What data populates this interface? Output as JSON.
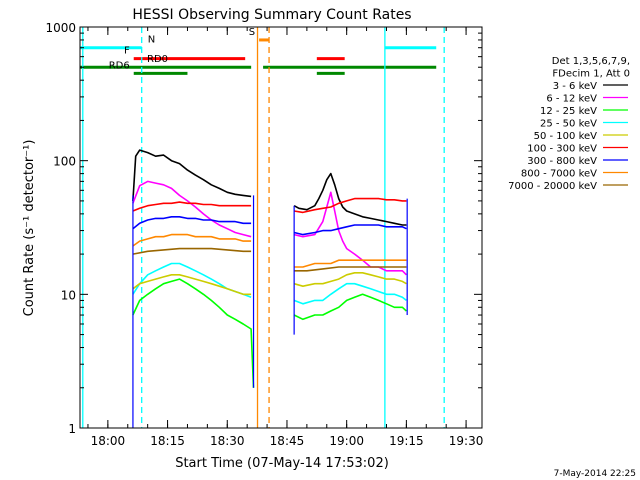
{
  "chart_data": {
    "type": "line",
    "title": "HESSI Observing Summary Count Rates",
    "xlabel": "Start Time (07-May-14 17:53:02)",
    "ylabel": "Count Rate (s⁻¹ detector⁻¹)",
    "x_unit": "minutes after 17:53:02",
    "xlim": [
      0,
      101
    ],
    "ylim": [
      1,
      1000
    ],
    "yscale": "log",
    "x_ticks": [
      {
        "value": 7,
        "label": "18:00"
      },
      {
        "value": 22,
        "label": "18:15"
      },
      {
        "value": 37,
        "label": "18:30"
      },
      {
        "value": 52,
        "label": "18:45"
      },
      {
        "value": 67,
        "label": "19:00"
      },
      {
        "value": 82,
        "label": "19:15"
      },
      {
        "value": 97,
        "label": "19:30"
      }
    ],
    "y_ticks": [
      {
        "value": 1,
        "label": "1"
      },
      {
        "value": 10,
        "label": "10"
      },
      {
        "value": 100,
        "label": "100"
      },
      {
        "value": 1000,
        "label": "1000"
      }
    ],
    "legend": {
      "position": "right",
      "header": [
        "Det 1,3,5,6,7,9,",
        "FDecim 1, Att 0"
      ],
      "entries": [
        {
          "label": "3 - 6 keV",
          "color": "#000000"
        },
        {
          "label": "6 - 12 keV",
          "color": "#ff00ff"
        },
        {
          "label": "12 - 25 keV",
          "color": "#00ff00"
        },
        {
          "label": "25 - 50 keV",
          "color": "#00ffff"
        },
        {
          "label": "50 - 100 keV",
          "color": "#cccc00"
        },
        {
          "label": "100 - 300 keV",
          "color": "#ff0000"
        },
        {
          "label": "300 - 800 keV",
          "color": "#0000ff"
        },
        {
          "label": "800 - 7000 keV",
          "color": "#ff8800"
        },
        {
          "label": "7000 - 20000 keV",
          "color": "#996600"
        }
      ]
    },
    "series": [
      {
        "name": "3 - 6 keV",
        "color": "#000000",
        "segments": [
          {
            "x": [
              13.3,
              14,
              15,
              17,
              19,
              21,
              23,
              25,
              27,
              29,
              31,
              33,
              35,
              37,
              39,
              41,
              43
            ],
            "y": [
              50,
              108,
              120,
              115,
              108,
              110,
              100,
              95,
              85,
              78,
              72,
              66,
              62,
              58,
              56,
              55,
              54
            ]
          },
          {
            "x": [
              53.8,
              55,
              57,
              59,
              60,
              61,
              62,
              63,
              64,
              65,
              66,
              67,
              69,
              71,
              73,
              75,
              77,
              79,
              81,
              82
            ],
            "y": [
              46,
              44,
              43,
              46,
              52,
              60,
              72,
              80,
              66,
              52,
              45,
              42,
              40,
              38,
              37,
              36,
              35,
              34,
              33,
              33
            ]
          }
        ]
      },
      {
        "name": "6 - 12 keV",
        "color": "#ff00ff",
        "segments": [
          {
            "x": [
              13.3,
              15,
              17,
              19,
              21,
              23,
              25,
              27,
              29,
              31,
              33,
              35,
              37,
              39,
              41,
              43
            ],
            "y": [
              48,
              65,
              70,
              68,
              66,
              62,
              55,
              50,
              45,
              40,
              36,
              33,
              31,
              29,
              28,
              27
            ]
          },
          {
            "x": [
              53.8,
              56,
              59,
              61,
              62,
              63,
              64,
              65,
              66,
              67,
              69,
              71,
              73,
              75,
              77,
              79,
              81,
              82
            ],
            "y": [
              28,
              27,
              28,
              35,
              45,
              58,
              42,
              30,
              25,
              22,
              20,
              18,
              16,
              16,
              15,
              15,
              15,
              14
            ]
          }
        ]
      },
      {
        "name": "12 - 25 keV",
        "color": "#00ff00",
        "segments": [
          {
            "x": [
              13.3,
              15,
              17,
              19,
              21,
              23,
              25,
              27,
              29,
              31,
              33,
              35,
              37,
              39,
              41,
              43,
              43.6
            ],
            "y": [
              7,
              9,
              10,
              11,
              12,
              12.5,
              13,
              12,
              11,
              10,
              9,
              8,
              7,
              6.5,
              6,
              5.5,
              2
            ]
          },
          {
            "x": [
              53.8,
              56,
              59,
              61,
              63,
              65,
              67,
              69,
              71,
              73,
              75,
              77,
              79,
              81,
              82
            ],
            "y": [
              7,
              6.5,
              7,
              7,
              7.5,
              8,
              9,
              9.5,
              10,
              9.5,
              9,
              8.5,
              8,
              8,
              7.5
            ]
          }
        ]
      },
      {
        "name": "25 - 50 keV",
        "color": "#00ffff",
        "segments": [
          {
            "x": [
              13.3,
              15,
              17,
              19,
              21,
              23,
              25,
              27,
              29,
              31,
              33,
              35,
              37,
              39,
              41,
              43
            ],
            "y": [
              10,
              12,
              14,
              15,
              16,
              17,
              17,
              16,
              15,
              14,
              13,
              12,
              11,
              10.5,
              10,
              9.5
            ]
          },
          {
            "x": [
              53.8,
              56,
              59,
              61,
              63,
              65,
              67,
              69,
              71,
              73,
              75,
              77,
              79,
              81,
              82
            ],
            "y": [
              9,
              8.5,
              9,
              9,
              10,
              11,
              12,
              12,
              11.5,
              11,
              10.5,
              10,
              10,
              9.5,
              9
            ]
          }
        ]
      },
      {
        "name": "50 - 100 keV",
        "color": "#cccc00",
        "segments": [
          {
            "x": [
              13.3,
              15,
              17,
              19,
              21,
              23,
              25,
              27,
              29,
              31,
              33,
              35,
              37,
              39,
              41,
              43
            ],
            "y": [
              11,
              12,
              12.5,
              13,
              13.5,
              14,
              14,
              13.5,
              13,
              12.5,
              12,
              11.5,
              11,
              10.5,
              10,
              10
            ]
          },
          {
            "x": [
              53.8,
              56,
              59,
              61,
              63,
              65,
              67,
              69,
              71,
              73,
              75,
              77,
              79,
              81,
              82
            ],
            "y": [
              12,
              11.5,
              12,
              12,
              12.5,
              13,
              14,
              14.5,
              14.5,
              14,
              13.5,
              13,
              13,
              12.5,
              12
            ]
          }
        ]
      },
      {
        "name": "100 - 300 keV",
        "color": "#ff0000",
        "segments": [
          {
            "x": [
              13.3,
              15,
              17,
              19,
              21,
              23,
              25,
              27,
              29,
              31,
              33,
              35,
              37,
              39,
              41,
              43
            ],
            "y": [
              42,
              44,
              46,
              47,
              48,
              48,
              49,
              48,
              48,
              47,
              47,
              46,
              46,
              46,
              46,
              46
            ]
          },
          {
            "x": [
              53.8,
              56,
              59,
              61,
              63,
              65,
              67,
              69,
              71,
              73,
              75,
              77,
              79,
              81,
              82
            ],
            "y": [
              42,
              41,
              43,
              44,
              45,
              48,
              50,
              52,
              52,
              52,
              52,
              51,
              51,
              50,
              50
            ]
          }
        ]
      },
      {
        "name": "300 - 800 keV",
        "color": "#0000ff",
        "segments": [
          {
            "x": [
              13.3,
              15,
              17,
              19,
              21,
              23,
              25,
              27,
              29,
              31,
              33,
              35,
              37,
              39,
              41,
              43
            ],
            "y": [
              31,
              34,
              36,
              37,
              37,
              38,
              38,
              37,
              37,
              36,
              36,
              35,
              35,
              35,
              34,
              34
            ]
          },
          {
            "x": [
              53.8,
              56,
              59,
              61,
              63,
              65,
              67,
              69,
              71,
              73,
              75,
              77,
              79,
              81,
              82
            ],
            "y": [
              29,
              28,
              29,
              30,
              30,
              31,
              32,
              33,
              33,
              33,
              33,
              32,
              32,
              32,
              31
            ]
          }
        ]
      },
      {
        "name": "800 - 7000 keV",
        "color": "#ff8800",
        "segments": [
          {
            "x": [
              13.3,
              15,
              17,
              19,
              21,
              23,
              25,
              27,
              29,
              31,
              33,
              35,
              37,
              39,
              41,
              43
            ],
            "y": [
              23,
              25,
              26,
              27,
              27,
              28,
              28,
              28,
              27,
              27,
              27,
              26,
              26,
              26,
              25,
              25
            ]
          },
          {
            "x": [
              53.8,
              56,
              59,
              61,
              63,
              65,
              67,
              69,
              71,
              73,
              75,
              77,
              79,
              81,
              82
            ],
            "y": [
              16,
              16,
              17,
              17,
              17,
              18,
              18,
              18,
              18,
              18,
              18,
              18,
              18,
              18,
              18
            ]
          }
        ]
      },
      {
        "name": "7000 - 20000 keV",
        "color": "#996600",
        "segments": [
          {
            "x": [
              13.3,
              17,
              21,
              25,
              29,
              33,
              37,
              41,
              43
            ],
            "y": [
              20,
              21,
              21.5,
              22,
              22,
              22,
              21.5,
              21,
              21
            ]
          },
          {
            "x": [
              53.8,
              57,
              61,
              65,
              69,
              73,
              77,
              81,
              82
            ],
            "y": [
              15,
              15,
              15.5,
              16,
              16,
              16,
              16,
              16,
              16
            ]
          }
        ]
      }
    ],
    "edges": [
      {
        "x": 13.3,
        "y_top": 55,
        "y_bottom": 1
      },
      {
        "x": 43.6,
        "y_top": 55,
        "y_bottom": 2
      },
      {
        "x": 53.8,
        "y_top": 46,
        "y_bottom": 5
      },
      {
        "x": 82.2,
        "y_top": 52,
        "y_bottom": 7
      }
    ],
    "vertical_lines": [
      {
        "x": 0.7,
        "color": "#00ffff",
        "style": "solid"
      },
      {
        "x": 15.5,
        "color": "#00ffff",
        "style": "dashed"
      },
      {
        "x": 44.6,
        "color": "#ff8800",
        "style": "solid"
      },
      {
        "x": 47.5,
        "color": "#ff8800",
        "style": "dashed"
      },
      {
        "x": 76.6,
        "color": "#00ffff",
        "style": "solid"
      },
      {
        "x": 91.5,
        "color": "#00ffff",
        "style": "dashed"
      }
    ],
    "flag_bars": [
      {
        "label": "N",
        "color": "#00ffff",
        "y": 700,
        "segments": [
          [
            0,
            15.5
          ],
          [
            76.6,
            89.5
          ]
        ]
      },
      {
        "label": "S",
        "color": "#ff8800",
        "y": 800,
        "segments": [
          [
            45,
            47.5
          ]
        ]
      },
      {
        "label": "F",
        "color": "#ff0000",
        "y": 580,
        "segments": [
          [
            13.5,
            41.5
          ],
          [
            59.5,
            66.5
          ]
        ]
      },
      {
        "label": "RD0",
        "color": "#008800",
        "y": 500,
        "segments": [
          [
            0,
            43
          ],
          [
            46,
            89.5
          ]
        ]
      },
      {
        "label": "RD6",
        "color": "#008800",
        "y": 450,
        "segments": [
          [
            13.5,
            27
          ],
          [
            59.5,
            66.5
          ]
        ]
      }
    ]
  },
  "footer": {
    "timestamp": "7-May-2014 22:25"
  }
}
